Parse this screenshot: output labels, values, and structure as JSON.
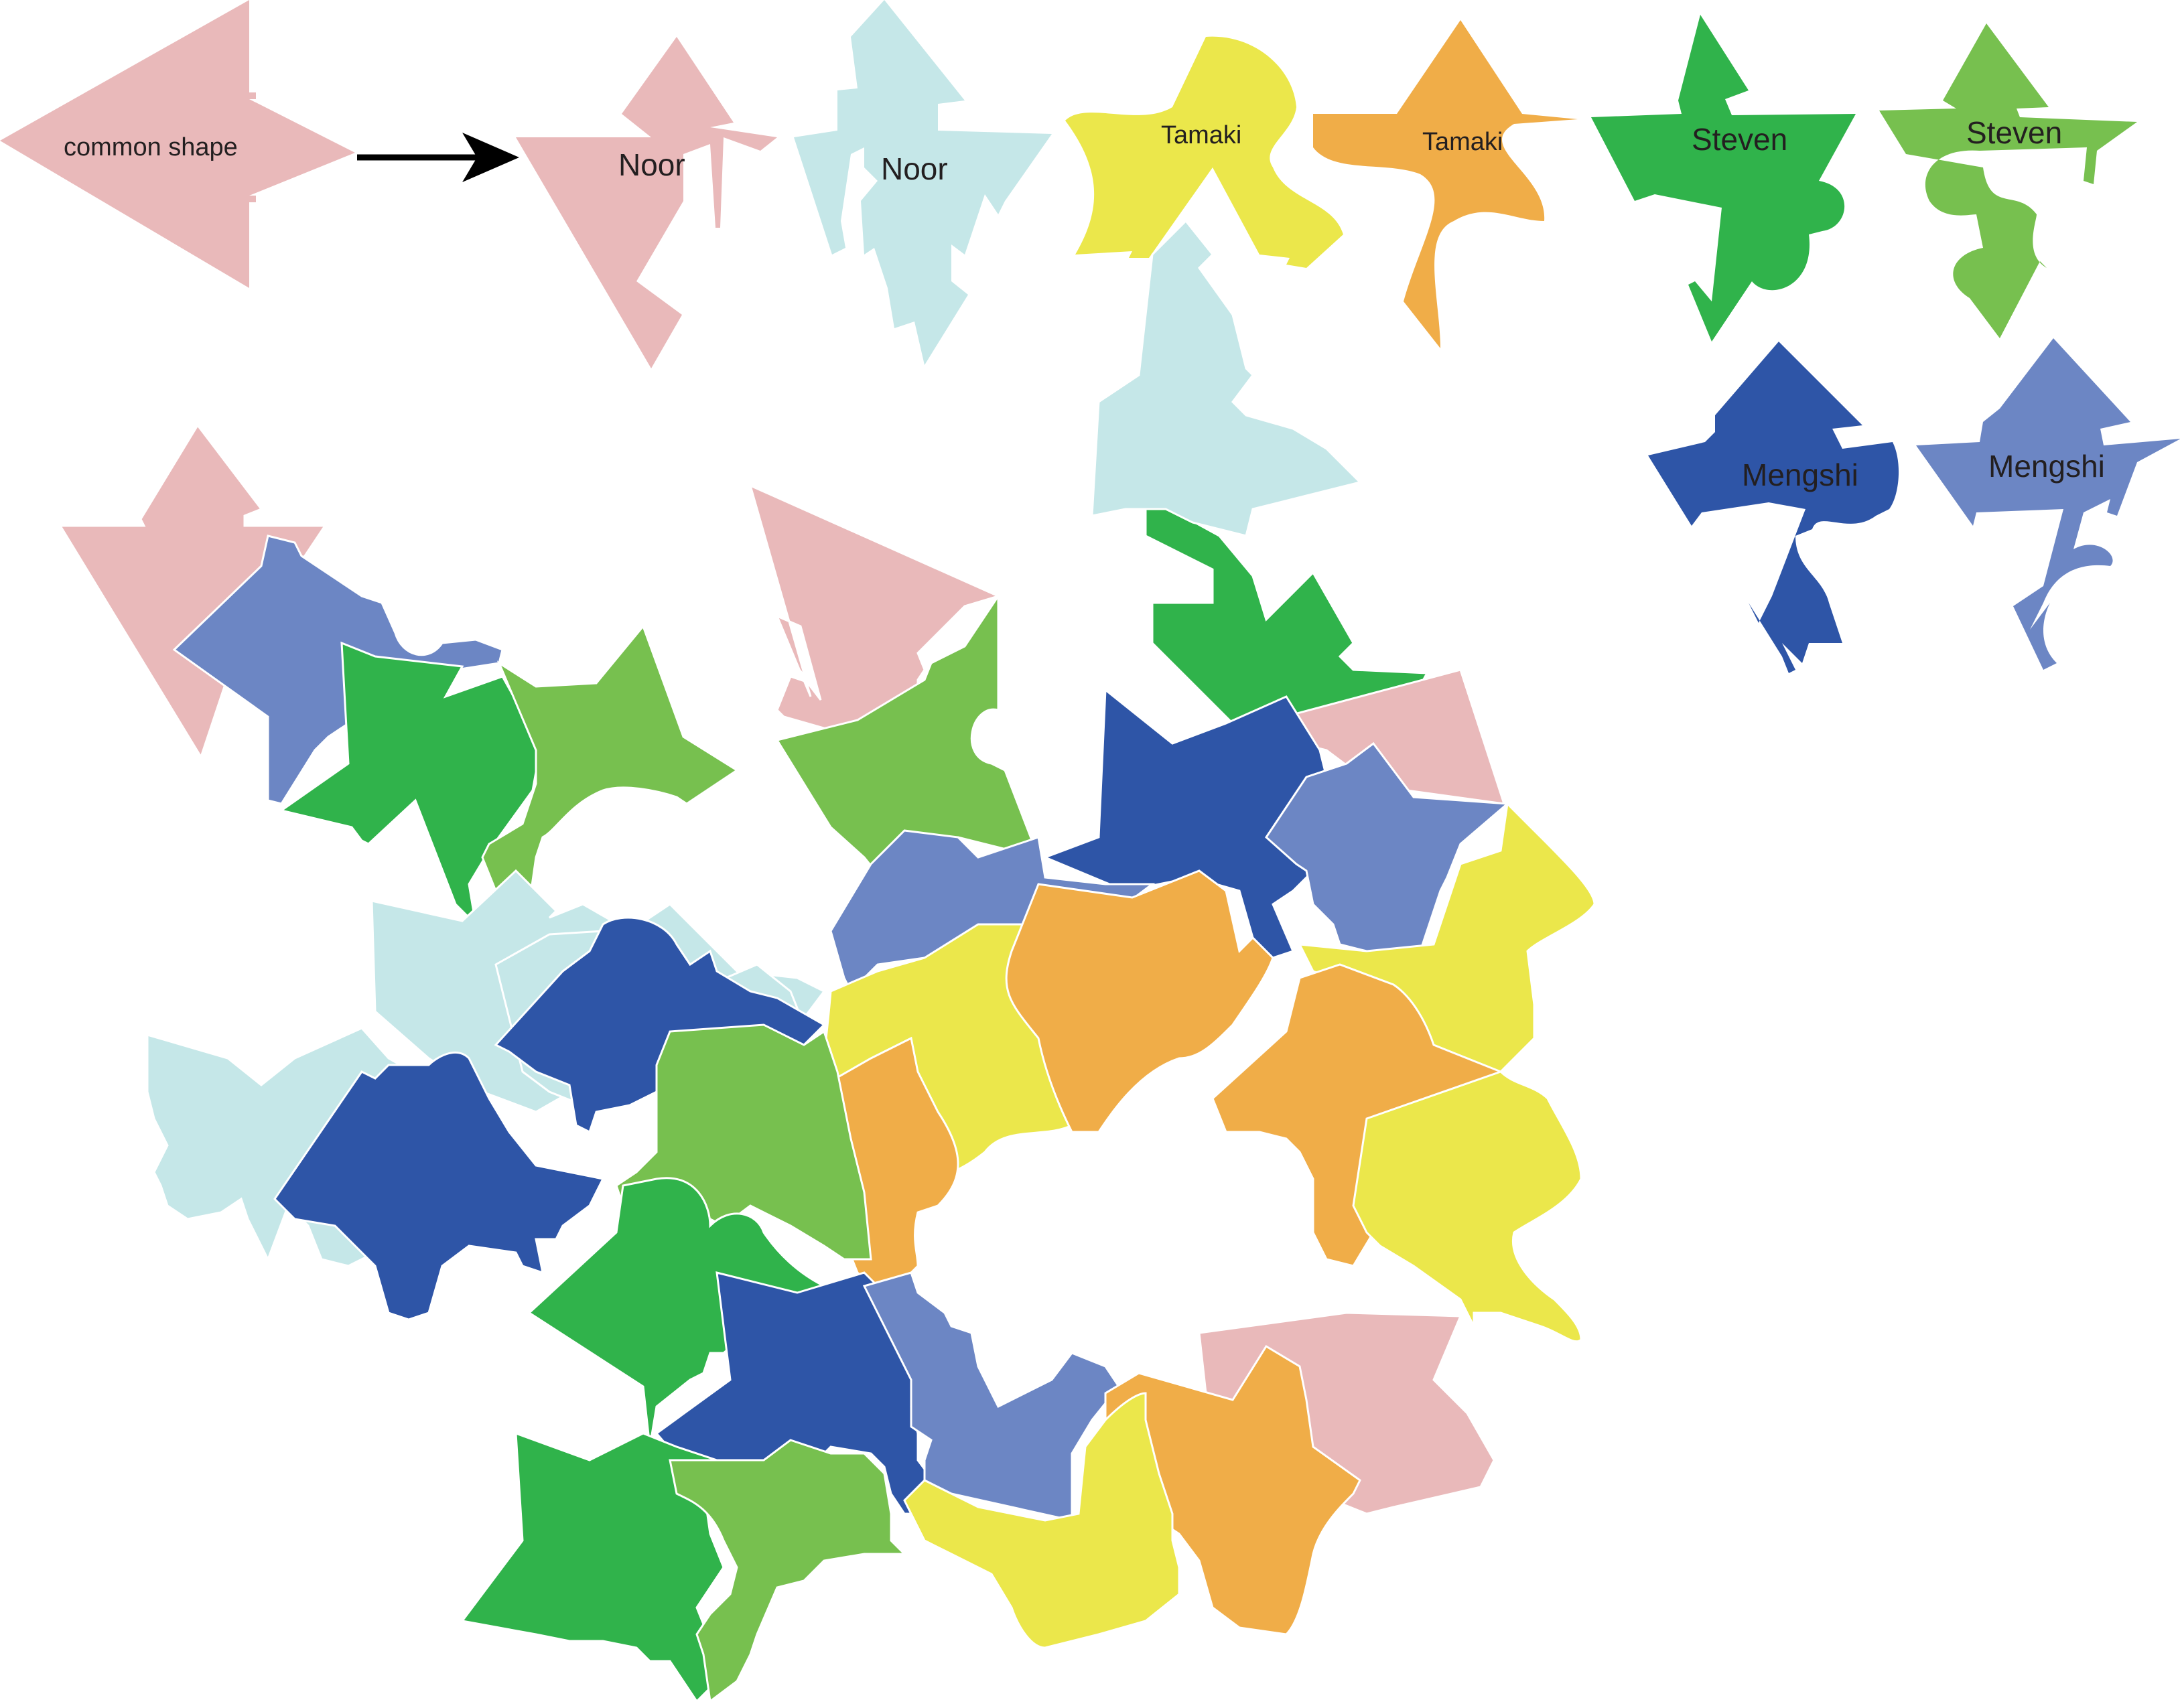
{
  "colors": {
    "pink": "#e9b9ba",
    "light_blue": "#c5e7e8",
    "yellow": "#ebe74b",
    "orange": "#f0ad48",
    "green": "#30b34b",
    "lime": "#77c04f",
    "navy": "#2e55a7",
    "periwinkle": "#6c86c4",
    "arrow": "#000000"
  },
  "legend": [
    {
      "text": "common shape",
      "color": "pink",
      "icon": "common-shape-arrow"
    },
    {
      "text": "Noor",
      "color": "pink",
      "icon": "noor-shape"
    },
    {
      "text": "Noor",
      "color": "light_blue",
      "icon": "noor-shape"
    },
    {
      "text": "Tamaki",
      "color": "yellow",
      "icon": "tamaki-shape"
    },
    {
      "text": "Tamaki",
      "color": "orange",
      "icon": "tamaki-shape"
    },
    {
      "text": "Steven",
      "color": "green",
      "icon": "steven-shape"
    },
    {
      "text": "Steven",
      "color": "lime",
      "icon": "steven-shape"
    },
    {
      "text": "Mengshi",
      "color": "navy",
      "icon": "mengshi-shape"
    },
    {
      "text": "Mengshi",
      "color": "periwinkle",
      "icon": "mengshi-shape"
    }
  ],
  "tessellation": [
    {
      "shape": "common",
      "color": "pink"
    },
    {
      "shape": "arrow",
      "color": "periwinkle"
    },
    {
      "shape": "arrow",
      "color": "green"
    },
    {
      "shape": "arrow",
      "color": "lime"
    },
    {
      "shape": "arrow",
      "color": "pink"
    },
    {
      "shape": "arrow",
      "color": "lime"
    },
    {
      "shape": "arrow",
      "color": "light_blue"
    },
    {
      "shape": "arrow",
      "color": "green"
    },
    {
      "shape": "arrow",
      "color": "pink"
    },
    {
      "shape": "arrow",
      "color": "navy"
    },
    {
      "shape": "arrow",
      "color": "periwinkle"
    },
    {
      "shape": "blob",
      "color": "yellow"
    },
    {
      "shape": "arrow",
      "color": "periwinkle"
    },
    {
      "shape": "blob",
      "color": "orange"
    },
    {
      "shape": "arrow",
      "color": "light_blue"
    },
    {
      "shape": "arrow",
      "color": "navy"
    },
    {
      "shape": "arrow",
      "color": "light_blue"
    },
    {
      "shape": "arrow",
      "color": "navy"
    },
    {
      "shape": "blob",
      "color": "yellow"
    },
    {
      "shape": "blob",
      "color": "orange"
    },
    {
      "shape": "blob",
      "color": "orange"
    },
    {
      "shape": "blob",
      "color": "yellow"
    },
    {
      "shape": "arrow",
      "color": "lime"
    },
    {
      "shape": "arrow",
      "color": "green"
    },
    {
      "shape": "arrow",
      "color": "navy"
    },
    {
      "shape": "arrow",
      "color": "periwinkle"
    },
    {
      "shape": "arrow",
      "color": "pink"
    },
    {
      "shape": "blob",
      "color": "orange"
    },
    {
      "shape": "blob",
      "color": "yellow"
    },
    {
      "shape": "arrow",
      "color": "green"
    },
    {
      "shape": "arrow",
      "color": "lime"
    },
    {
      "shape": "arrow",
      "color": "light_blue"
    }
  ]
}
